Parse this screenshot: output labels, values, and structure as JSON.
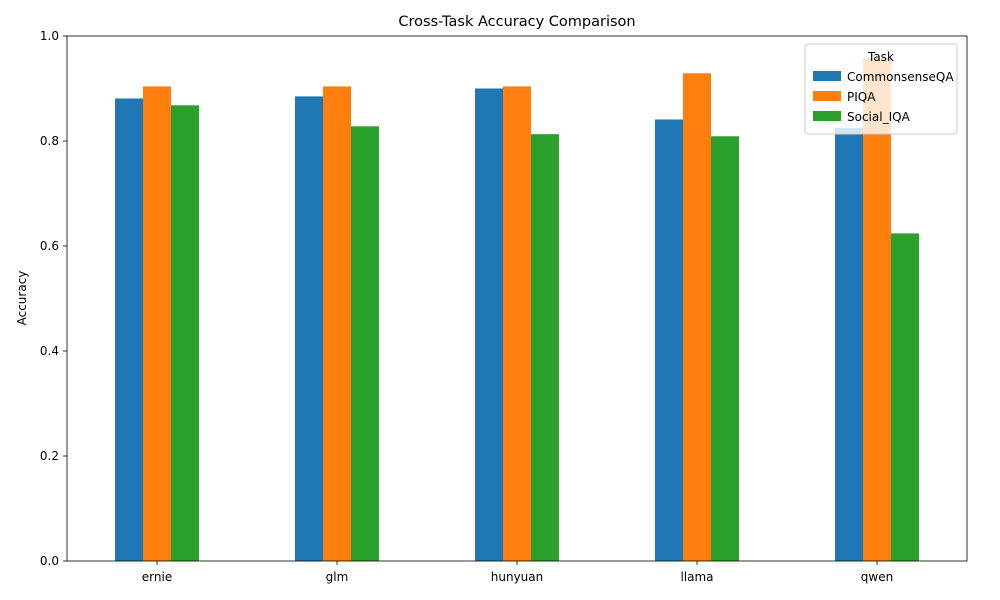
{
  "chart_data": {
    "type": "bar",
    "title": "Cross-Task Accuracy Comparison",
    "xlabel": "",
    "ylabel": "Accuracy",
    "ylim": [
      0,
      1.0
    ],
    "yticks": [
      "0.0",
      "0.2",
      "0.4",
      "0.6",
      "0.8",
      "1.0"
    ],
    "categories": [
      "ernie",
      "glm",
      "hunyuan",
      "llama",
      "qwen"
    ],
    "legend_title": "Task",
    "legend_position": "top-right",
    "grid": false,
    "series": [
      {
        "name": "CommonsenseQA",
        "color": "#1f77b4",
        "values": [
          0.881,
          0.885,
          0.9,
          0.841,
          0.825
        ]
      },
      {
        "name": "PIQA",
        "color": "#ff7f0e",
        "values": [
          0.904,
          0.904,
          0.904,
          0.929,
          0.958
        ]
      },
      {
        "name": "Social_IQA",
        "color": "#2ca02c",
        "values": [
          0.868,
          0.828,
          0.813,
          0.809,
          0.624
        ]
      }
    ]
  }
}
